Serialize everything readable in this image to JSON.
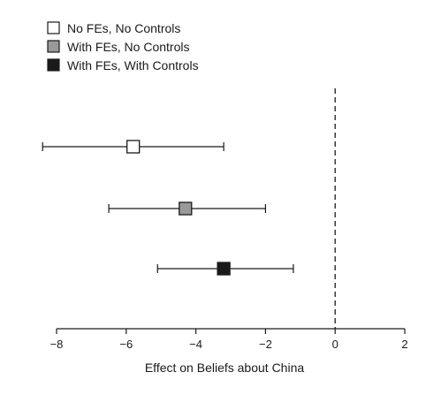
{
  "chart_data": {
    "type": "scatter",
    "title": "",
    "xlabel": "Effect on Beliefs about China",
    "ylabel": "",
    "xlim": [
      -8,
      2
    ],
    "xticks": [
      -8,
      -6,
      -4,
      -2,
      0,
      2
    ],
    "xtick_labels": [
      "−8",
      "−6",
      "−4",
      "−2",
      "0",
      "2"
    ],
    "grid": false,
    "reference_line": {
      "x": 0,
      "style": "dashed"
    },
    "legend": {
      "placement": "top-left",
      "entries": [
        {
          "label": "No FEs, No Controls",
          "fill": "#ffffff"
        },
        {
          "label": "With FEs, No Controls",
          "fill": "#999999"
        },
        {
          "label": "With FEs, With Controls",
          "fill": "#1a1a1a"
        }
      ]
    },
    "series": [
      {
        "name": "No FEs, No Controls",
        "estimate": -5.8,
        "ci": [
          -8.4,
          -3.2
        ],
        "fill": "#ffffff"
      },
      {
        "name": "With FEs, No Controls",
        "estimate": -4.3,
        "ci": [
          -6.5,
          -2.0
        ],
        "fill": "#999999"
      },
      {
        "name": "With FEs, With Controls",
        "estimate": -3.2,
        "ci": [
          -5.1,
          -1.2
        ],
        "fill": "#1a1a1a"
      }
    ]
  }
}
